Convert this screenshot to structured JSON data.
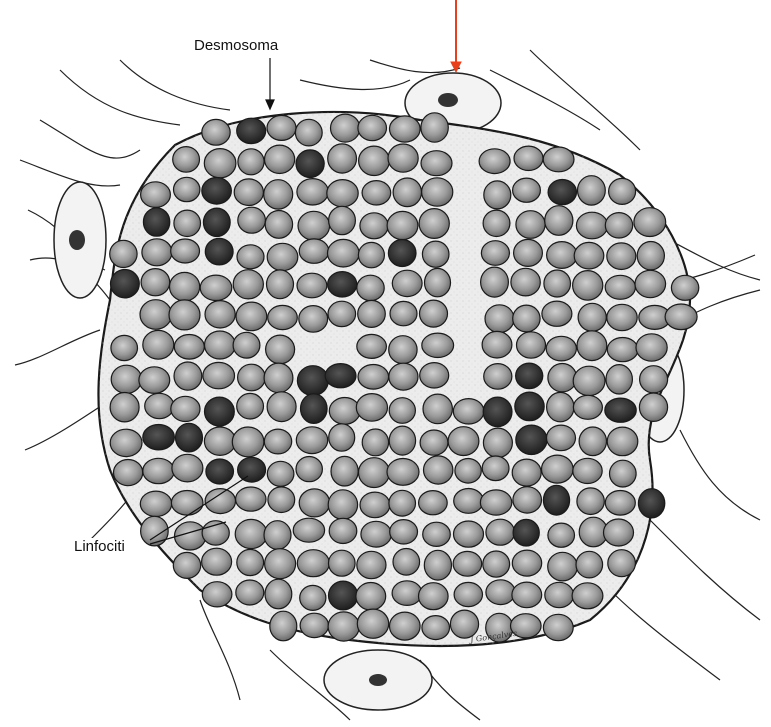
{
  "labels": {
    "desmosoma": "Desmosoma",
    "linfociti": "Linfociti"
  },
  "signature": "J Gonçalves",
  "colors": {
    "background": "#ffffff",
    "ink": "#1a1a1a",
    "cell_fill": "#8a8a8a",
    "dark_cell_fill": "#2a2a2a",
    "reticular_cell_fill": "#f3f3f3",
    "indicator_arrow": "#e8401c"
  }
}
